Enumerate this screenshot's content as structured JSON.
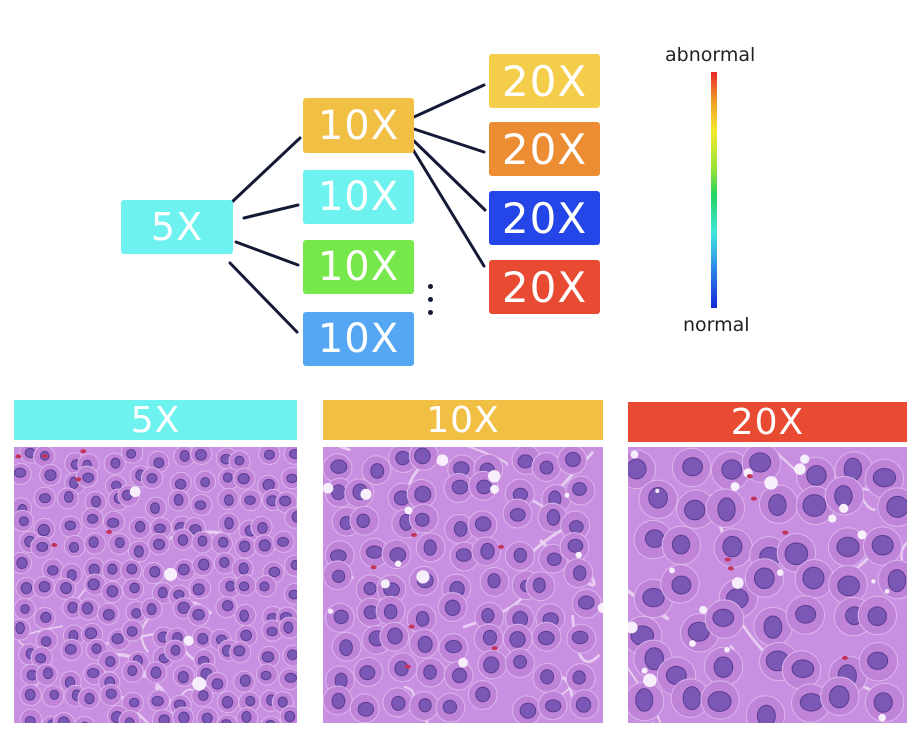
{
  "tree": {
    "root": {
      "label": "5X",
      "color": "#6ef2f0"
    },
    "level10": [
      {
        "label": "10X",
        "color": "#f2bf45"
      },
      {
        "label": "10X",
        "color": "#6ef2f0"
      },
      {
        "label": "10X",
        "color": "#77e84b"
      },
      {
        "label": "10X",
        "color": "#55a7f3"
      }
    ],
    "level20": [
      {
        "label": "20X",
        "color": "#f4cd4a"
      },
      {
        "label": "20X",
        "color": "#ec8d34"
      },
      {
        "label": "20X",
        "color": "#2446e8"
      },
      {
        "label": "20X",
        "color": "#e84a32"
      }
    ]
  },
  "legend": {
    "top_label": "abnormal",
    "bottom_label": "normal"
  },
  "panels": [
    {
      "label": "5X",
      "color": "#6ef2f0"
    },
    {
      "label": "10X",
      "color": "#f2bf45"
    },
    {
      "label": "20X",
      "color": "#e84a32"
    }
  ]
}
